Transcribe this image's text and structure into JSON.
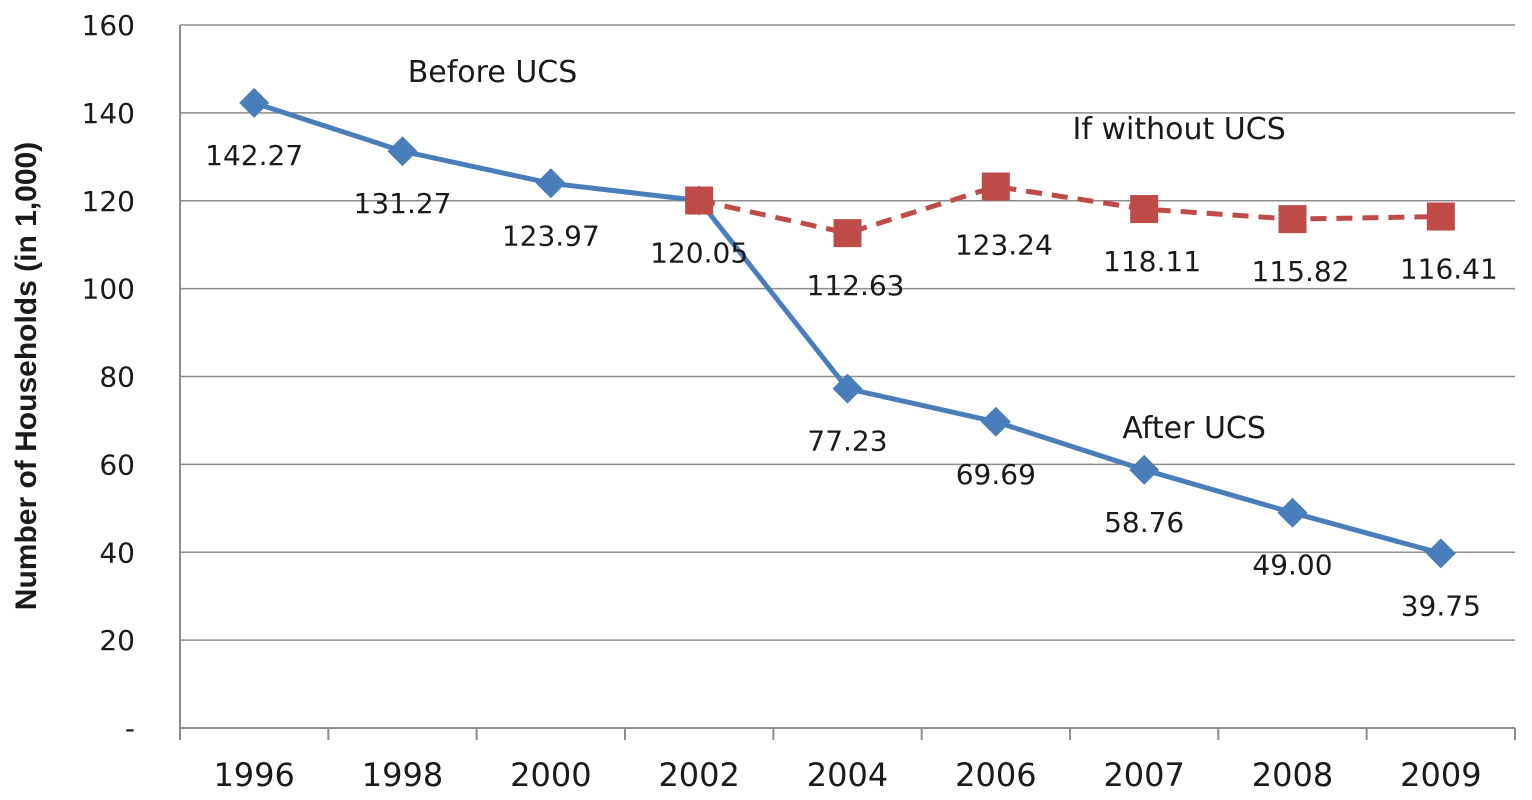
{
  "chart_data": {
    "type": "line",
    "categories": [
      "1996",
      "1998",
      "2000",
      "2002",
      "2004",
      "2006",
      "2007",
      "2008",
      "2009"
    ],
    "ylabel": "Number of Households (in 1,000)",
    "xlabel": "",
    "ylim": [
      0,
      160
    ],
    "y_ticks": [
      {
        "value": 0,
        "label": "-"
      },
      {
        "value": 20,
        "label": "20"
      },
      {
        "value": 40,
        "label": "40"
      },
      {
        "value": 60,
        "label": "60"
      },
      {
        "value": 80,
        "label": "80"
      },
      {
        "value": 100,
        "label": "100"
      },
      {
        "value": 120,
        "label": "120"
      },
      {
        "value": 140,
        "label": "140"
      },
      {
        "value": 160,
        "label": "160"
      }
    ],
    "grid": true,
    "series": [
      {
        "color": "#4a7ebb",
        "marker": "diamond",
        "line_style": "solid",
        "points": [
          {
            "x": "1996",
            "y": 142.27,
            "label": "142.27"
          },
          {
            "x": "1998",
            "y": 131.27,
            "label": "131.27"
          },
          {
            "x": "2000",
            "y": 123.97,
            "label": "123.97"
          },
          {
            "x": "2002",
            "y": 120.05,
            "label": "120.05"
          },
          {
            "x": "2004",
            "y": 77.23,
            "label": "77.23"
          },
          {
            "x": "2006",
            "y": 69.69,
            "label": "69.69"
          },
          {
            "x": "2007",
            "y": 58.76,
            "label": "58.76"
          },
          {
            "x": "2008",
            "y": 49.0,
            "label": "49.00"
          },
          {
            "x": "2009",
            "y": 39.75,
            "label": "39.75"
          }
        ]
      },
      {
        "color": "#be4b48",
        "marker": "square",
        "line_style": "dashed",
        "points": [
          {
            "x": "2002",
            "y": 120.05,
            "label": ""
          },
          {
            "x": "2004",
            "y": 112.63,
            "label": "112.63"
          },
          {
            "x": "2006",
            "y": 123.24,
            "label": "123.24"
          },
          {
            "x": "2007",
            "y": 118.11,
            "label": "118.11"
          },
          {
            "x": "2008",
            "y": 115.82,
            "label": "115.82"
          },
          {
            "x": "2009",
            "y": 116.41,
            "label": "116.41"
          }
        ]
      }
    ],
    "annotations": [
      {
        "text": "Before UCS",
        "x": "1998",
        "y": 147
      },
      {
        "text": "If without UCS",
        "x": "2007",
        "y": 134
      },
      {
        "text": "After UCS",
        "x": "2007",
        "y": 66
      }
    ]
  }
}
